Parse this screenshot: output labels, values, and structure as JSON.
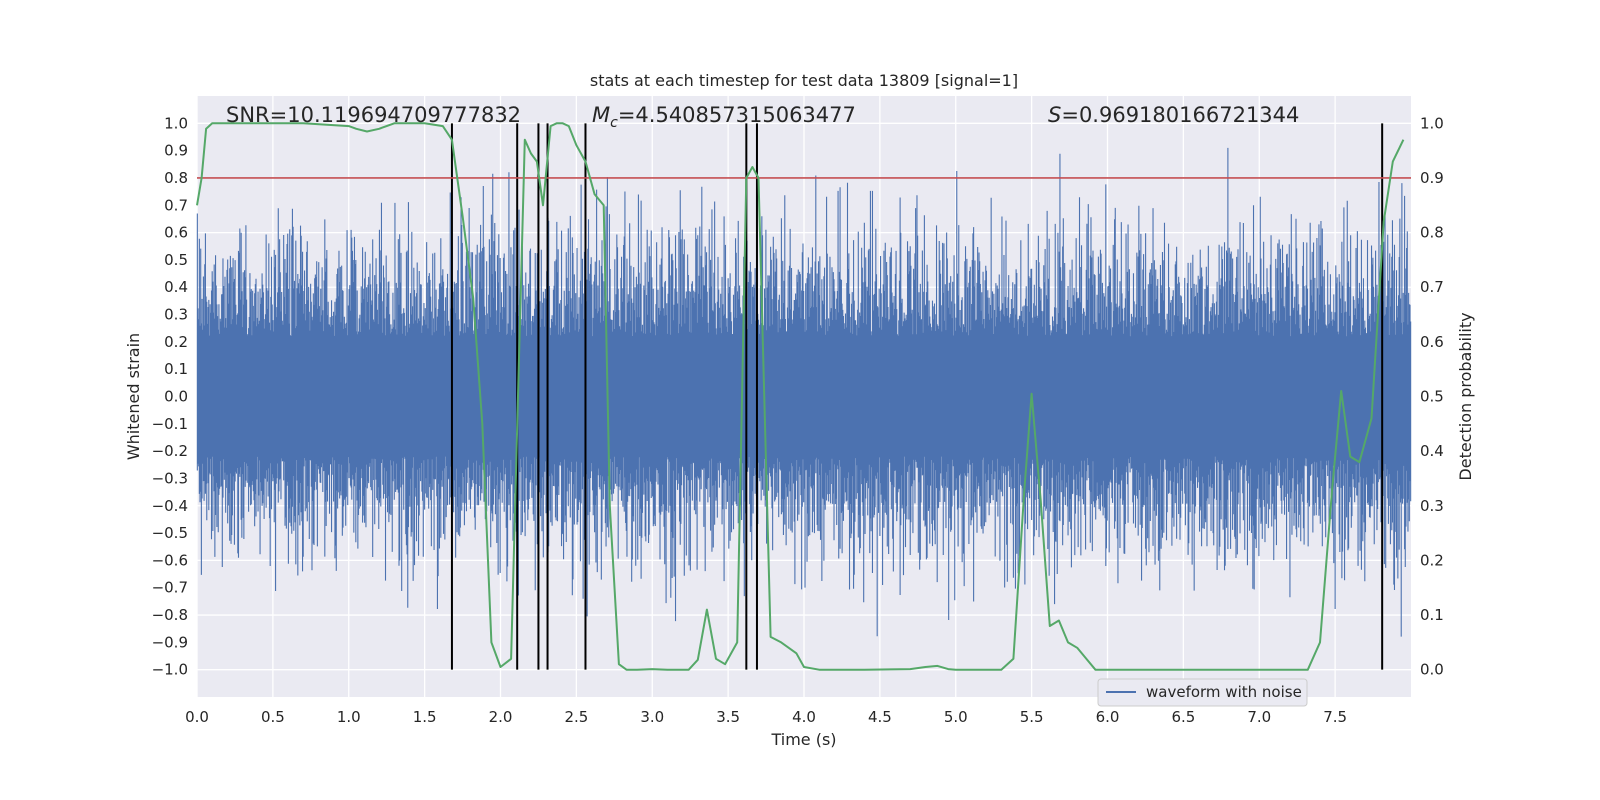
{
  "chart_data": {
    "type": "line",
    "title": "stats at each timestep for test data 13809 [signal=1]",
    "xlabel": "Time (s)",
    "ylabel": "Whitened strain",
    "y2label": "Detection probability",
    "xlim": [
      0,
      8
    ],
    "ylim": [
      -1.1,
      1.1
    ],
    "y2lim": [
      -0.05,
      1.05
    ],
    "xticks": [
      0.0,
      0.5,
      1.0,
      1.5,
      2.0,
      2.5,
      3.0,
      3.5,
      4.0,
      4.5,
      5.0,
      5.5,
      6.0,
      6.5,
      7.0,
      7.5
    ],
    "yticks": [
      -1.0,
      -0.9,
      -0.8,
      -0.7,
      -0.6,
      -0.5,
      -0.4,
      -0.3,
      -0.2,
      -0.1,
      0.0,
      0.1,
      0.2,
      0.3,
      0.4,
      0.5,
      0.6,
      0.7,
      0.8,
      0.9,
      1.0
    ],
    "y2ticks": [
      0.0,
      0.1,
      0.2,
      0.3,
      0.4,
      0.5,
      0.6,
      0.7,
      0.8,
      0.9,
      1.0
    ],
    "grid": true,
    "legend_position": "lower-right",
    "annotations": {
      "snr": "SNR=10.119694709777832",
      "mc_symbol": "M",
      "mc_sub": "c",
      "mc_value": "=4.540857315063477",
      "s_symbol": "S",
      "s_value": "=0.969180166721344"
    },
    "threshold": {
      "value": 0.9,
      "axis": "y2",
      "color": "#c44e52"
    },
    "vlines": {
      "x": [
        1.68,
        2.11,
        2.25,
        2.31,
        2.56,
        3.62,
        3.69,
        7.81
      ],
      "ymin": -1.0,
      "ymax": 1.0,
      "color": "#000000"
    },
    "series": [
      {
        "name": "waveform with noise",
        "axis": "y",
        "color": "#4c72b0",
        "kind": "noise",
        "envelope": {
          "typical_abs": 0.45,
          "max_abs": 1.0
        }
      },
      {
        "axis": "y2",
        "color": "#55a868",
        "x": [
          0.0,
          0.03,
          0.06,
          0.1,
          0.2,
          0.4,
          0.7,
          1.0,
          1.05,
          1.12,
          1.2,
          1.3,
          1.5,
          1.62,
          1.68,
          1.75,
          1.82,
          1.88,
          1.94,
          2.0,
          2.07,
          2.12,
          2.16,
          2.2,
          2.24,
          2.28,
          2.33,
          2.37,
          2.41,
          2.45,
          2.5,
          2.56,
          2.62,
          2.68,
          2.72,
          2.78,
          2.83,
          2.9,
          3.0,
          3.1,
          3.18,
          3.24,
          3.3,
          3.36,
          3.42,
          3.48,
          3.56,
          3.62,
          3.66,
          3.7,
          3.78,
          3.85,
          3.95,
          4.0,
          4.1,
          4.4,
          4.7,
          4.8,
          4.88,
          4.95,
          5.0,
          5.3,
          5.38,
          5.45,
          5.5,
          5.56,
          5.62,
          5.68,
          5.74,
          5.8,
          5.86,
          5.92,
          6.0,
          6.1,
          6.3,
          7.2,
          7.26,
          7.32,
          7.4,
          7.48,
          7.54,
          7.6,
          7.66,
          7.74,
          7.82,
          7.88,
          7.95
        ],
        "y": [
          0.85,
          0.9,
          0.99,
          1.0,
          1.0,
          1.0,
          1.0,
          0.995,
          0.99,
          0.985,
          0.99,
          1.0,
          1.0,
          0.995,
          0.97,
          0.83,
          0.68,
          0.45,
          0.05,
          0.005,
          0.02,
          0.55,
          0.97,
          0.945,
          0.93,
          0.85,
          0.995,
          1.0,
          1.0,
          0.995,
          0.96,
          0.93,
          0.87,
          0.85,
          0.3,
          0.01,
          0.0,
          0.0,
          0.001,
          0.0,
          0.0,
          0.0,
          0.018,
          0.11,
          0.02,
          0.01,
          0.05,
          0.9,
          0.92,
          0.9,
          0.06,
          0.05,
          0.03,
          0.005,
          0.0,
          0.0,
          0.001,
          0.005,
          0.007,
          0.001,
          0.0,
          0.0,
          0.02,
          0.32,
          0.505,
          0.31,
          0.08,
          0.09,
          0.05,
          0.04,
          0.02,
          0.0,
          0.0,
          0.0,
          0.0,
          0.0,
          0.0,
          0.0,
          0.05,
          0.33,
          0.51,
          0.39,
          0.38,
          0.46,
          0.82,
          0.93,
          0.97
        ]
      }
    ]
  }
}
